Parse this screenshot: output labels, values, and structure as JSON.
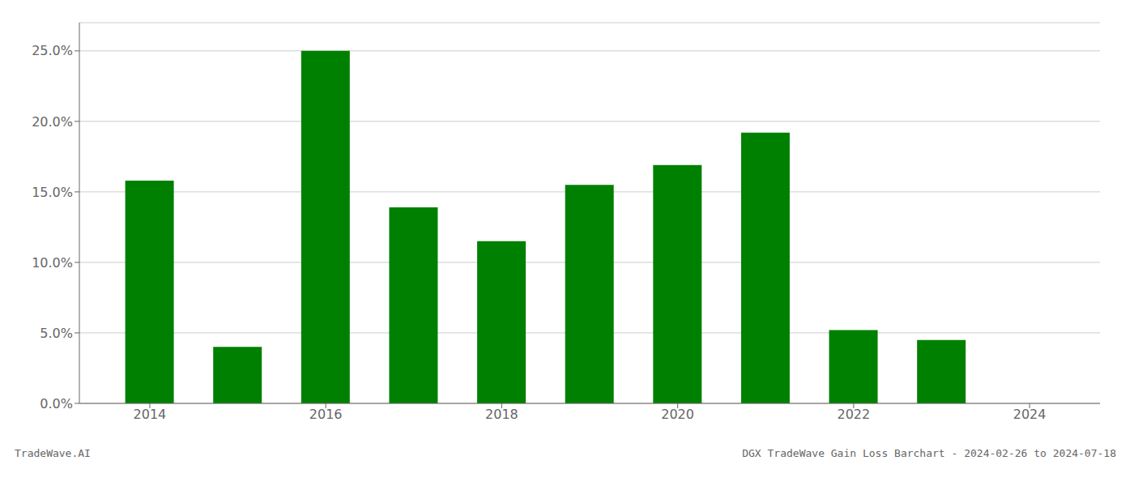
{
  "chart_data": {
    "type": "bar",
    "x": [
      2014,
      2015,
      2016,
      2017,
      2018,
      2019,
      2020,
      2021,
      2022,
      2023,
      2024
    ],
    "values": [
      0.158,
      0.04,
      0.25,
      0.139,
      0.115,
      0.155,
      0.169,
      0.192,
      0.052,
      0.045,
      0.0
    ],
    "color": "#008000",
    "xlim": [
      2013.2,
      2024.8
    ],
    "xticks": [
      2014,
      2016,
      2018,
      2020,
      2022,
      2024
    ],
    "ylim": [
      0,
      0.27
    ],
    "yticks": [
      {
        "value": 0.0,
        "label": "0.0%"
      },
      {
        "value": 0.05,
        "label": "5.0%"
      },
      {
        "value": 0.1,
        "label": "10.0%"
      },
      {
        "value": 0.15,
        "label": "15.0%"
      },
      {
        "value": 0.2,
        "label": "20.0%"
      },
      {
        "value": 0.25,
        "label": "25.0%"
      }
    ],
    "grid": true,
    "annotations": [
      "TradeWave.AI",
      "DGX TradeWave Gain Loss Barchart - 2024-02-26 to 2024-07-18"
    ]
  }
}
